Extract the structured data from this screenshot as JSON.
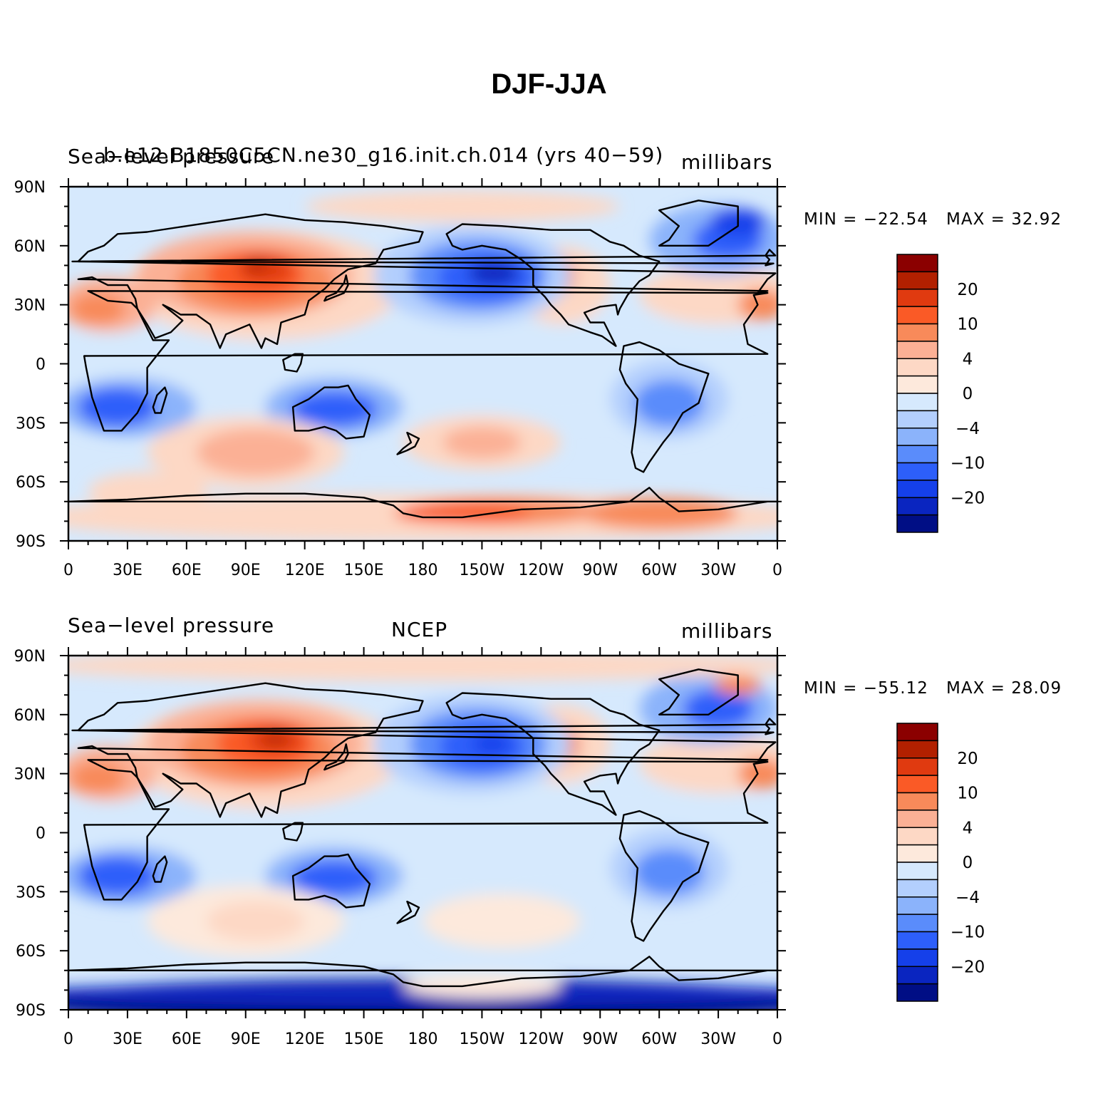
{
  "title": "DJF-JJA",
  "lat_labels": [
    "90N",
    "60N",
    "30N",
    "0",
    "30S",
    "60S",
    "90S"
  ],
  "lon_labels": [
    "0",
    "30E",
    "60E",
    "90E",
    "120E",
    "150E",
    "180",
    "150W",
    "120W",
    "90W",
    "60W",
    "30W",
    "0"
  ],
  "colorbar": {
    "colors": [
      "#8b0000",
      "#b22000",
      "#e03a10",
      "#fa5a26",
      "#f88a5a",
      "#fbb095",
      "#fdd8c5",
      "#fde9dc",
      "#d6e9fd",
      "#b3cffd",
      "#8bb3fb",
      "#5a8cfb",
      "#2d5ffa",
      "#1540ea",
      "#0a25c0",
      "#000e85"
    ],
    "tick_labels": [
      {
        "label": "20",
        "after_box": 2
      },
      {
        "label": "10",
        "after_box": 4
      },
      {
        "label": "4",
        "after_box": 6
      },
      {
        "label": "0",
        "after_box": 8
      },
      {
        "label": "−4",
        "after_box": 10
      },
      {
        "label": "−10",
        "after_box": 12
      },
      {
        "label": "−20",
        "after_box": 14
      }
    ]
  },
  "panels": [
    {
      "variable": "Sea−level pressure",
      "case": "b.e12.B1850C5CN.ne30_g16.init.ch.014 (yrs 40−59)",
      "units": "millibars",
      "min_label": "MIN = −22.54",
      "max_label": "MAX =   32.92",
      "min": -22.54,
      "max": 32.92
    },
    {
      "variable": "Sea−level pressure",
      "case": "NCEP",
      "units": "millibars",
      "min_label": "MIN = −55.12",
      "max_label": "MAX =   28.09",
      "min": -55.12,
      "max": 28.09
    }
  ]
}
